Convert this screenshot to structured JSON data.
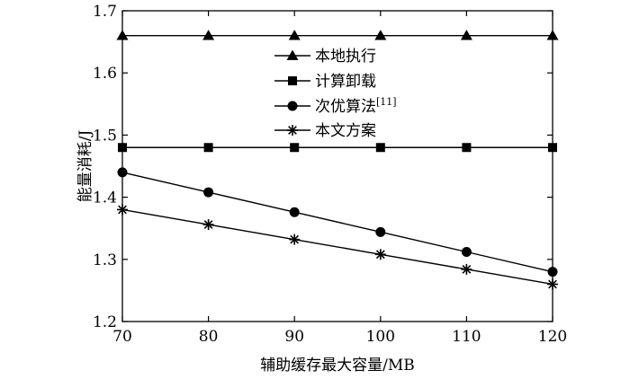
{
  "chart_data": {
    "type": "line",
    "title": "",
    "xlabel": "辅助缓存最大容量/MB",
    "ylabel": "能量消耗/J",
    "xlim": [
      70,
      120
    ],
    "ylim": [
      1.2,
      1.7
    ],
    "xticks": [
      70,
      80,
      90,
      100,
      110,
      120
    ],
    "yticks": [
      1.2,
      1.3,
      1.4,
      1.5,
      1.6,
      1.7
    ],
    "ytick_labels": [
      "1.2",
      "1.3",
      "1.4",
      "1.5",
      "1.6",
      "1.7"
    ],
    "grid": false,
    "legend_position": "top-center",
    "x": [
      70,
      80,
      90,
      100,
      110,
      120
    ],
    "series": [
      {
        "name": "本地执行",
        "marker": "triangle",
        "values": [
          1.66,
          1.66,
          1.66,
          1.66,
          1.66,
          1.66
        ]
      },
      {
        "name": "计算卸载",
        "marker": "square",
        "values": [
          1.48,
          1.48,
          1.48,
          1.48,
          1.48,
          1.48
        ]
      },
      {
        "name": "次优算法",
        "name_superscript": "[11]",
        "marker": "circle",
        "values": [
          1.44,
          1.408,
          1.376,
          1.344,
          1.312,
          1.28
        ]
      },
      {
        "name": "本文方案",
        "marker": "asterisk",
        "values": [
          1.38,
          1.356,
          1.332,
          1.308,
          1.284,
          1.26
        ]
      }
    ]
  }
}
